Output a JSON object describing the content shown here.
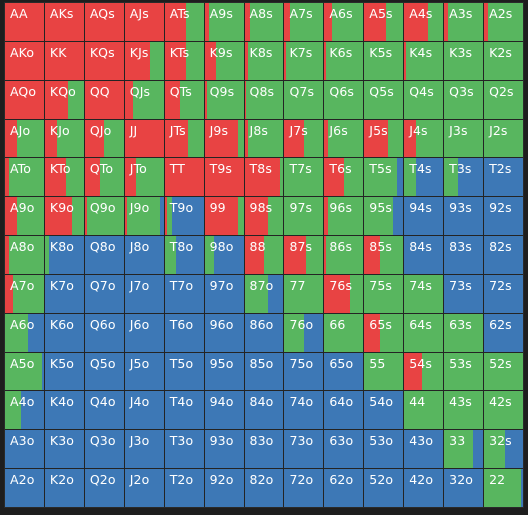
{
  "colors": {
    "raise": "#e84343",
    "call": "#58b65f",
    "fold": "#3d78b6"
  },
  "rows": [
    [
      {
        "label": "AA",
        "mix": [
          1,
          0,
          0
        ]
      },
      {
        "label": "AKs",
        "mix": [
          1,
          0,
          0
        ]
      },
      {
        "label": "AQs",
        "mix": [
          1,
          0,
          0
        ]
      },
      {
        "label": "AJs",
        "mix": [
          1,
          0,
          0
        ]
      },
      {
        "label": "ATs",
        "mix": [
          0.55,
          0.45,
          0
        ]
      },
      {
        "label": "A9s",
        "mix": [
          0.1,
          0.9,
          0
        ]
      },
      {
        "label": "A8s",
        "mix": [
          0.15,
          0.85,
          0
        ]
      },
      {
        "label": "A7s",
        "mix": [
          0.15,
          0.85,
          0
        ]
      },
      {
        "label": "A6s",
        "mix": [
          0.2,
          0.8,
          0
        ]
      },
      {
        "label": "A5s",
        "mix": [
          0.55,
          0.45,
          0
        ]
      },
      {
        "label": "A4s",
        "mix": [
          0.6,
          0.4,
          0
        ]
      },
      {
        "label": "A3s",
        "mix": [
          0.1,
          0.9,
          0
        ]
      },
      {
        "label": "A2s",
        "mix": [
          0.1,
          0.9,
          0
        ]
      }
    ],
    [
      {
        "label": "AKo",
        "mix": [
          1,
          0,
          0
        ]
      },
      {
        "label": "KK",
        "mix": [
          1,
          0,
          0
        ]
      },
      {
        "label": "KQs",
        "mix": [
          1,
          0,
          0
        ]
      },
      {
        "label": "KJs",
        "mix": [
          0.65,
          0.35,
          0
        ]
      },
      {
        "label": "KTs",
        "mix": [
          0.55,
          0.45,
          0
        ]
      },
      {
        "label": "K9s",
        "mix": [
          0.3,
          0.7,
          0
        ]
      },
      {
        "label": "K8s",
        "mix": [
          0.1,
          0.9,
          0
        ]
      },
      {
        "label": "K7s",
        "mix": [
          0.05,
          0.95,
          0
        ]
      },
      {
        "label": "K6s",
        "mix": [
          0.05,
          0.95,
          0
        ]
      },
      {
        "label": "K5s",
        "mix": [
          0,
          1,
          0
        ]
      },
      {
        "label": "K4s",
        "mix": [
          0.05,
          0.95,
          0
        ]
      },
      {
        "label": "K3s",
        "mix": [
          0,
          1,
          0
        ]
      },
      {
        "label": "K2s",
        "mix": [
          0,
          1,
          0
        ]
      }
    ],
    [
      {
        "label": "AQo",
        "mix": [
          1,
          0,
          0
        ]
      },
      {
        "label": "KQo",
        "mix": [
          0.6,
          0.4,
          0
        ]
      },
      {
        "label": "QQ",
        "mix": [
          1,
          0,
          0
        ]
      },
      {
        "label": "QJs",
        "mix": [
          0.2,
          0.8,
          0
        ]
      },
      {
        "label": "QTs",
        "mix": [
          0.4,
          0.6,
          0
        ]
      },
      {
        "label": "Q9s",
        "mix": [
          0.05,
          0.95,
          0
        ]
      },
      {
        "label": "Q8s",
        "mix": [
          0.05,
          0.95,
          0
        ]
      },
      {
        "label": "Q7s",
        "mix": [
          0,
          1,
          0
        ]
      },
      {
        "label": "Q6s",
        "mix": [
          0,
          1,
          0
        ]
      },
      {
        "label": "Q5s",
        "mix": [
          0,
          1,
          0
        ]
      },
      {
        "label": "Q4s",
        "mix": [
          0,
          1,
          0
        ]
      },
      {
        "label": "Q3s",
        "mix": [
          0,
          1,
          0
        ]
      },
      {
        "label": "Q2s",
        "mix": [
          0,
          1,
          0
        ]
      }
    ],
    [
      {
        "label": "AJo",
        "mix": [
          0.3,
          0.7,
          0
        ]
      },
      {
        "label": "KJo",
        "mix": [
          0.3,
          0.7,
          0
        ]
      },
      {
        "label": "QJo",
        "mix": [
          0.5,
          0.5,
          0
        ]
      },
      {
        "label": "JJ",
        "mix": [
          1,
          0,
          0
        ]
      },
      {
        "label": "JTs",
        "mix": [
          0.6,
          0.4,
          0
        ]
      },
      {
        "label": "J9s",
        "mix": [
          0.85,
          0.15,
          0
        ]
      },
      {
        "label": "J8s",
        "mix": [
          0.1,
          0.9,
          0
        ]
      },
      {
        "label": "J7s",
        "mix": [
          0.5,
          0.5,
          0
        ]
      },
      {
        "label": "J6s",
        "mix": [
          0.1,
          0.9,
          0
        ]
      },
      {
        "label": "J5s",
        "mix": [
          0.6,
          0.4,
          0
        ]
      },
      {
        "label": "J4s",
        "mix": [
          0.3,
          0.7,
          0
        ]
      },
      {
        "label": "J3s",
        "mix": [
          0,
          1,
          0
        ]
      },
      {
        "label": "J2s",
        "mix": [
          0,
          1,
          0
        ]
      }
    ],
    [
      {
        "label": "ATo",
        "mix": [
          0.1,
          0.9,
          0
        ]
      },
      {
        "label": "KTo",
        "mix": [
          0.55,
          0.45,
          0
        ]
      },
      {
        "label": "QTo",
        "mix": [
          0.4,
          0.6,
          0
        ]
      },
      {
        "label": "JTo",
        "mix": [
          0.3,
          0.7,
          0
        ]
      },
      {
        "label": "TT",
        "mix": [
          1,
          0,
          0
        ]
      },
      {
        "label": "T9s",
        "mix": [
          1,
          0,
          0
        ]
      },
      {
        "label": "T8s",
        "mix": [
          0.9,
          0.1,
          0
        ]
      },
      {
        "label": "T7s",
        "mix": [
          0,
          1,
          0
        ]
      },
      {
        "label": "T6s",
        "mix": [
          0.5,
          0.5,
          0
        ]
      },
      {
        "label": "T5s",
        "mix": [
          0,
          0.85,
          0.15
        ]
      },
      {
        "label": "T4s",
        "mix": [
          0,
          0.3,
          0.7
        ]
      },
      {
        "label": "T3s",
        "mix": [
          0,
          0.35,
          0.65
        ]
      },
      {
        "label": "T2s",
        "mix": [
          0,
          0,
          1
        ]
      }
    ],
    [
      {
        "label": "A9o",
        "mix": [
          0.3,
          0.7,
          0
        ]
      },
      {
        "label": "K9o",
        "mix": [
          0.7,
          0.3,
          0
        ]
      },
      {
        "label": "Q9o",
        "mix": [
          0.05,
          0.95,
          0
        ]
      },
      {
        "label": "J9o",
        "mix": [
          0.05,
          0.85,
          0.1
        ]
      },
      {
        "label": "T9o",
        "mix": [
          0.05,
          0.15,
          0.8
        ]
      },
      {
        "label": "99",
        "mix": [
          0.85,
          0.15,
          0
        ]
      },
      {
        "label": "98s",
        "mix": [
          0.6,
          0.4,
          0
        ]
      },
      {
        "label": "97s",
        "mix": [
          0,
          1,
          0
        ]
      },
      {
        "label": "96s",
        "mix": [
          0.1,
          0.9,
          0
        ]
      },
      {
        "label": "95s",
        "mix": [
          0,
          0.75,
          0.25
        ]
      },
      {
        "label": "94s",
        "mix": [
          0,
          0,
          1
        ]
      },
      {
        "label": "93s",
        "mix": [
          0,
          0,
          1
        ]
      },
      {
        "label": "92s",
        "mix": [
          0,
          0,
          1
        ]
      }
    ],
    [
      {
        "label": "A8o",
        "mix": [
          0.1,
          0.9,
          0
        ]
      },
      {
        "label": "K8o",
        "mix": [
          0,
          0.1,
          0.9
        ]
      },
      {
        "label": "Q8o",
        "mix": [
          0,
          0,
          1
        ]
      },
      {
        "label": "J8o",
        "mix": [
          0,
          0,
          1
        ]
      },
      {
        "label": "T8o",
        "mix": [
          0,
          0.3,
          0.7
        ]
      },
      {
        "label": "98o",
        "mix": [
          0,
          0.25,
          0.75
        ]
      },
      {
        "label": "88",
        "mix": [
          0.5,
          0.5,
          0
        ]
      },
      {
        "label": "87s",
        "mix": [
          0.55,
          0.45,
          0
        ]
      },
      {
        "label": "86s",
        "mix": [
          0.05,
          0.95,
          0
        ]
      },
      {
        "label": "85s",
        "mix": [
          0.4,
          0.6,
          0
        ]
      },
      {
        "label": "84s",
        "mix": [
          0,
          0,
          1
        ]
      },
      {
        "label": "83s",
        "mix": [
          0,
          0,
          1
        ]
      },
      {
        "label": "82s",
        "mix": [
          0,
          0,
          1
        ]
      }
    ],
    [
      {
        "label": "A7o",
        "mix": [
          0.2,
          0.8,
          0
        ]
      },
      {
        "label": "K7o",
        "mix": [
          0,
          0,
          1
        ]
      },
      {
        "label": "Q7o",
        "mix": [
          0,
          0,
          1
        ]
      },
      {
        "label": "J7o",
        "mix": [
          0,
          0,
          1
        ]
      },
      {
        "label": "T7o",
        "mix": [
          0,
          0,
          1
        ]
      },
      {
        "label": "97o",
        "mix": [
          0,
          0,
          1
        ]
      },
      {
        "label": "87o",
        "mix": [
          0,
          0.6,
          0.4
        ]
      },
      {
        "label": "77",
        "mix": [
          0,
          1,
          0
        ]
      },
      {
        "label": "76s",
        "mix": [
          0.65,
          0.35,
          0
        ]
      },
      {
        "label": "75s",
        "mix": [
          0,
          1,
          0
        ]
      },
      {
        "label": "74s",
        "mix": [
          0,
          1,
          0
        ]
      },
      {
        "label": "73s",
        "mix": [
          0,
          0,
          1
        ]
      },
      {
        "label": "72s",
        "mix": [
          0,
          0,
          1
        ]
      }
    ],
    [
      {
        "label": "A6o",
        "mix": [
          0,
          0.6,
          0.4
        ]
      },
      {
        "label": "K6o",
        "mix": [
          0,
          0,
          1
        ]
      },
      {
        "label": "Q6o",
        "mix": [
          0,
          0,
          1
        ]
      },
      {
        "label": "J6o",
        "mix": [
          0,
          0,
          1
        ]
      },
      {
        "label": "T6o",
        "mix": [
          0,
          0,
          1
        ]
      },
      {
        "label": "96o",
        "mix": [
          0,
          0,
          1
        ]
      },
      {
        "label": "86o",
        "mix": [
          0,
          0,
          1
        ]
      },
      {
        "label": "76o",
        "mix": [
          0,
          0.5,
          0.5
        ]
      },
      {
        "label": "66",
        "mix": [
          0,
          1,
          0
        ]
      },
      {
        "label": "65s",
        "mix": [
          0.4,
          0.6,
          0
        ]
      },
      {
        "label": "64s",
        "mix": [
          0,
          1,
          0
        ]
      },
      {
        "label": "63s",
        "mix": [
          0,
          1,
          0
        ]
      },
      {
        "label": "62s",
        "mix": [
          0,
          0,
          1
        ]
      }
    ],
    [
      {
        "label": "A5o",
        "mix": [
          0,
          0.95,
          0.05
        ]
      },
      {
        "label": "K5o",
        "mix": [
          0,
          0,
          1
        ]
      },
      {
        "label": "Q5o",
        "mix": [
          0,
          0,
          1
        ]
      },
      {
        "label": "J5o",
        "mix": [
          0,
          0,
          1
        ]
      },
      {
        "label": "T5o",
        "mix": [
          0,
          0,
          1
        ]
      },
      {
        "label": "95o",
        "mix": [
          0,
          0,
          1
        ]
      },
      {
        "label": "85o",
        "mix": [
          0,
          0,
          1
        ]
      },
      {
        "label": "75o",
        "mix": [
          0,
          0,
          1
        ]
      },
      {
        "label": "65o",
        "mix": [
          0,
          0,
          1
        ]
      },
      {
        "label": "55",
        "mix": [
          0,
          1,
          0
        ]
      },
      {
        "label": "54s",
        "mix": [
          0.45,
          0.55,
          0
        ]
      },
      {
        "label": "53s",
        "mix": [
          0,
          1,
          0
        ]
      },
      {
        "label": "52s",
        "mix": [
          0,
          1,
          0
        ]
      }
    ],
    [
      {
        "label": "A4o",
        "mix": [
          0,
          0.4,
          0.6
        ]
      },
      {
        "label": "K4o",
        "mix": [
          0,
          0,
          1
        ]
      },
      {
        "label": "Q4o",
        "mix": [
          0,
          0,
          1
        ]
      },
      {
        "label": "J4o",
        "mix": [
          0,
          0,
          1
        ]
      },
      {
        "label": "T4o",
        "mix": [
          0,
          0,
          1
        ]
      },
      {
        "label": "94o",
        "mix": [
          0,
          0,
          1
        ]
      },
      {
        "label": "84o",
        "mix": [
          0,
          0,
          1
        ]
      },
      {
        "label": "74o",
        "mix": [
          0,
          0,
          1
        ]
      },
      {
        "label": "64o",
        "mix": [
          0,
          0,
          1
        ]
      },
      {
        "label": "54o",
        "mix": [
          0,
          0,
          1
        ]
      },
      {
        "label": "44",
        "mix": [
          0,
          1,
          0
        ]
      },
      {
        "label": "43s",
        "mix": [
          0,
          1,
          0
        ]
      },
      {
        "label": "42s",
        "mix": [
          0,
          1,
          0
        ]
      }
    ],
    [
      {
        "label": "A3o",
        "mix": [
          0,
          0,
          1
        ]
      },
      {
        "label": "K3o",
        "mix": [
          0,
          0,
          1
        ]
      },
      {
        "label": "Q3o",
        "mix": [
          0,
          0,
          1
        ]
      },
      {
        "label": "J3o",
        "mix": [
          0,
          0,
          1
        ]
      },
      {
        "label": "T3o",
        "mix": [
          0,
          0,
          1
        ]
      },
      {
        "label": "93o",
        "mix": [
          0,
          0,
          1
        ]
      },
      {
        "label": "83o",
        "mix": [
          0,
          0,
          1
        ]
      },
      {
        "label": "73o",
        "mix": [
          0,
          0,
          1
        ]
      },
      {
        "label": "63o",
        "mix": [
          0,
          0,
          1
        ]
      },
      {
        "label": "53o",
        "mix": [
          0,
          0,
          1
        ]
      },
      {
        "label": "43o",
        "mix": [
          0,
          0,
          1
        ]
      },
      {
        "label": "33",
        "mix": [
          0,
          0.75,
          0.25
        ]
      },
      {
        "label": "32s",
        "mix": [
          0,
          0.55,
          0.45
        ]
      }
    ],
    [
      {
        "label": "A2o",
        "mix": [
          0,
          0,
          1
        ]
      },
      {
        "label": "K2o",
        "mix": [
          0,
          0,
          1
        ]
      },
      {
        "label": "Q2o",
        "mix": [
          0,
          0,
          1
        ]
      },
      {
        "label": "J2o",
        "mix": [
          0,
          0,
          1
        ]
      },
      {
        "label": "T2o",
        "mix": [
          0,
          0,
          1
        ]
      },
      {
        "label": "92o",
        "mix": [
          0,
          0,
          1
        ]
      },
      {
        "label": "82o",
        "mix": [
          0,
          0,
          1
        ]
      },
      {
        "label": "72o",
        "mix": [
          0,
          0,
          1
        ]
      },
      {
        "label": "62o",
        "mix": [
          0,
          0,
          1
        ]
      },
      {
        "label": "52o",
        "mix": [
          0,
          0,
          1
        ]
      },
      {
        "label": "42o",
        "mix": [
          0,
          0,
          1
        ]
      },
      {
        "label": "32o",
        "mix": [
          0,
          0,
          1
        ]
      },
      {
        "label": "22",
        "mix": [
          0,
          0.95,
          0.05
        ]
      }
    ]
  ]
}
